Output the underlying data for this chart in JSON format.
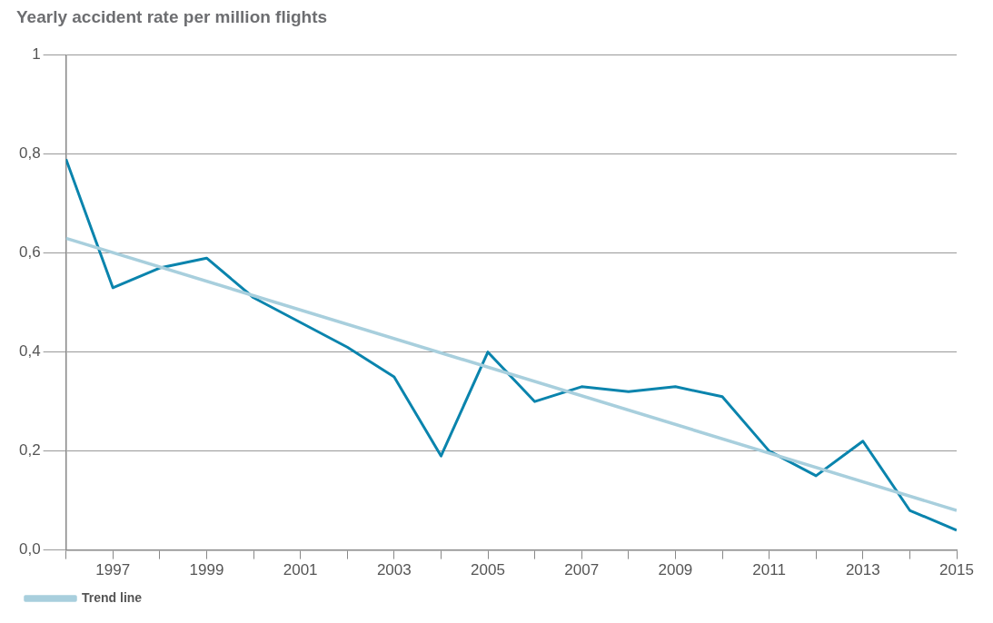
{
  "chart_data": {
    "type": "line",
    "title": "Yearly accident rate per million flights",
    "x": [
      1996,
      1997,
      1998,
      1999,
      2000,
      2001,
      2002,
      2003,
      2004,
      2005,
      2006,
      2007,
      2008,
      2009,
      2010,
      2011,
      2012,
      2013,
      2014,
      2015
    ],
    "series": [
      {
        "color": "#0a84ad",
        "values": [
          0.79,
          0.53,
          0.57,
          0.59,
          0.51,
          0.46,
          0.41,
          0.35,
          0.19,
          0.4,
          0.3,
          0.33,
          0.32,
          0.33,
          0.31,
          0.2,
          0.15,
          0.22,
          0.08,
          0.04
        ]
      },
      {
        "name": "Trend line",
        "color": "#a8cfdd",
        "x": [
          1996,
          2015
        ],
        "values": [
          0.63,
          0.08
        ]
      }
    ],
    "xlim": [
      1996,
      2015
    ],
    "xticks": [
      {
        "value": 1996,
        "label": null
      },
      1997,
      {
        "value": 1998,
        "label": null
      },
      1999,
      {
        "value": 2000,
        "label": null
      },
      2001,
      {
        "value": 2002,
        "label": null
      },
      2003,
      {
        "value": 2004,
        "label": null
      },
      2005,
      {
        "value": 2006,
        "label": null
      },
      2007,
      {
        "value": 2008,
        "label": null
      },
      2009,
      {
        "value": 2010,
        "label": null
      },
      2011,
      {
        "value": 2012,
        "label": null
      },
      2013,
      {
        "value": 2014,
        "label": null
      },
      2015
    ],
    "ylim": [
      0,
      1
    ],
    "yticks": [
      {
        "value": 0,
        "label": "0,0"
      },
      {
        "value": 0.2,
        "label": "0,2"
      },
      {
        "value": 0.4,
        "label": "0,4"
      },
      {
        "value": 0.6,
        "label": "0,6"
      },
      {
        "value": 0.8,
        "label": "0,8"
      },
      1
    ],
    "grid": "y",
    "legend": "bottom left",
    "marker": "none",
    "line_style": "solid"
  }
}
